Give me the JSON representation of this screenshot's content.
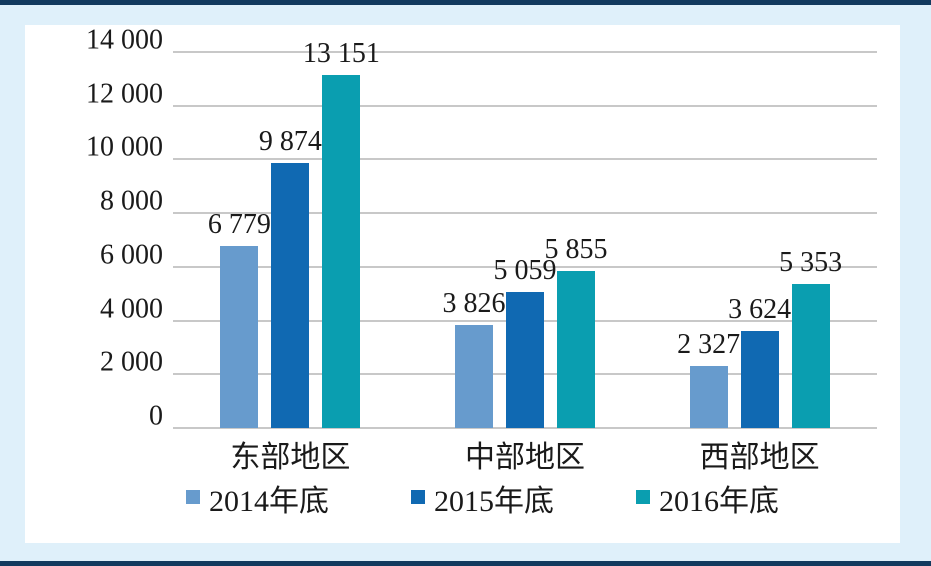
{
  "page": {
    "background_color": "#dff0fa",
    "border_band_color": "#123a5e",
    "panel_color": "#ffffff",
    "text_color": "#1a1a1a"
  },
  "chart_data": {
    "type": "bar",
    "title": "",
    "xlabel": "",
    "ylabel": "",
    "categories": [
      "东部地区",
      "中部地区",
      "西部地区"
    ],
    "series": [
      {
        "name": "2014年底",
        "color": "#679bcd",
        "values": [
          6779,
          3826,
          2327
        ],
        "labels": [
          "6 779",
          "3 826",
          "2 327"
        ]
      },
      {
        "name": "2015年底",
        "color": "#1069b2",
        "values": [
          9874,
          5059,
          3624
        ],
        "labels": [
          "9 874",
          "5 059",
          "3 624"
        ]
      },
      {
        "name": "2016年底",
        "color": "#0a9eb0",
        "values": [
          13151,
          5855,
          5353
        ],
        "labels": [
          "13 151",
          "5 855",
          "5 353"
        ]
      }
    ],
    "ylim": [
      0,
      14000
    ],
    "ytick_interval": 2000,
    "ytick_labels": [
      "0",
      "2 000",
      "4 000",
      "6 000",
      "8 000",
      "10 000",
      "12 000",
      "14 000"
    ],
    "grid": true,
    "gridline_color": "#c8c8c8",
    "legend_position": "bottom"
  }
}
